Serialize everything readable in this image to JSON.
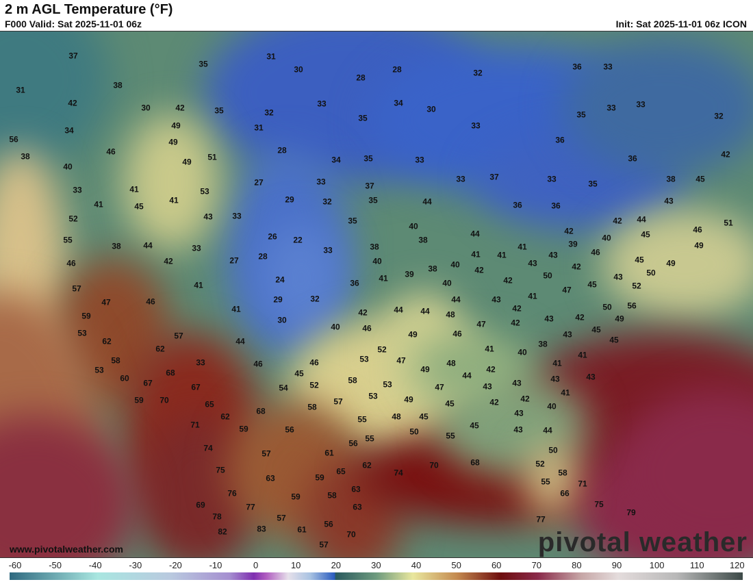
{
  "header": {
    "title": "2 m AGL Temperature (°F)",
    "valid": "F000 Valid: Sat 2025-11-01 06z",
    "init": "Init: Sat 2025-11-01 06z ICON"
  },
  "map": {
    "website": "www.pivotalweather.com",
    "logo": "pivotal weather",
    "values": [
      37,
      35,
      31,
      30,
      28,
      32,
      36,
      33,
      31,
      38,
      28,
      42,
      30,
      42,
      35,
      33,
      34,
      30,
      33,
      33,
      35,
      32,
      34,
      49,
      32,
      31,
      35,
      33,
      56,
      49,
      46,
      28,
      36,
      42,
      38,
      40,
      51,
      49,
      34,
      35,
      33,
      36,
      33,
      41,
      53,
      27,
      33,
      37,
      33,
      37,
      33,
      35,
      38,
      45,
      41,
      45,
      41,
      29,
      32,
      35,
      44,
      36,
      36,
      43,
      52,
      43,
      33,
      35,
      40,
      42,
      44,
      46,
      51,
      55,
      38,
      44,
      33,
      26,
      22,
      33,
      44,
      42,
      39,
      40,
      45,
      49,
      46,
      42,
      27,
      28,
      38,
      38,
      41,
      41,
      41,
      43,
      46,
      45,
      57,
      41,
      24,
      40,
      38,
      40,
      42,
      43,
      42,
      49,
      47,
      46,
      29,
      32,
      36,
      41,
      39,
      40,
      42,
      50,
      45,
      43,
      50,
      59,
      41,
      30,
      42,
      44,
      44,
      44,
      43,
      41,
      47,
      52,
      56,
      53,
      40,
      46,
      48,
      42,
      43,
      42,
      50,
      49,
      62,
      57,
      49,
      46,
      47,
      42,
      43,
      45,
      45,
      44,
      62,
      52,
      38,
      41,
      40,
      41,
      58,
      33,
      46,
      46,
      53,
      47,
      48,
      41,
      53,
      68,
      45,
      49,
      44,
      42,
      43,
      43,
      43,
      60,
      67,
      52,
      58,
      53,
      47,
      43,
      41,
      67,
      54,
      57,
      53,
      49,
      45,
      42,
      42,
      59,
      70,
      65,
      68,
      58,
      55,
      48,
      45,
      43,
      40,
      62,
      71,
      59,
      56,
      50,
      55,
      55,
      45,
      43,
      44,
      74,
      57,
      61,
      56,
      50,
      75,
      63,
      59,
      65,
      62,
      74,
      70,
      68,
      52,
      58,
      76,
      58,
      63,
      55,
      71,
      66,
      69,
      77,
      59,
      63,
      75,
      78,
      57,
      56,
      70,
      79,
      82,
      83,
      61,
      77,
      57
    ]
  },
  "colorbar": {
    "ticks": [
      "-60",
      "-50",
      "-40",
      "-30",
      "-20",
      "-10",
      "0",
      "10",
      "20",
      "30",
      "40",
      "50",
      "60",
      "70",
      "80",
      "90",
      "100",
      "110",
      "120"
    ],
    "colors": {
      "cold": "#2f6a80",
      "freezing": "#2b5cbf",
      "mild": "#e9e79e",
      "warm": "#6e0e0e",
      "hot": "#3d4a48"
    }
  }
}
